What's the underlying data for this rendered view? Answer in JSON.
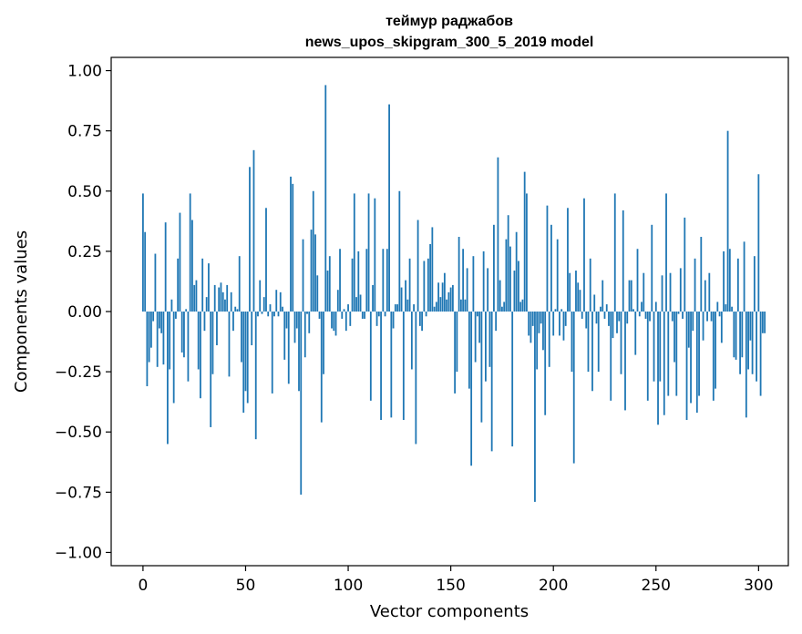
{
  "chart_data": {
    "type": "bar",
    "title_line1": "теймур раджабов",
    "title_line2": "news_upos_skipgram_300_5_2019 model",
    "xlabel": "Vector components",
    "ylabel": "Components values",
    "xlim": [
      -15.5,
      314.5
    ],
    "ylim": [
      -1.055,
      1.055
    ],
    "xticks": [
      0,
      50,
      100,
      150,
      200,
      250,
      300
    ],
    "xtick_labels": [
      "0",
      "50",
      "100",
      "150",
      "200",
      "250",
      "300"
    ],
    "yticks": [
      1.0,
      0.75,
      0.5,
      0.25,
      0.0,
      -0.25,
      -0.5,
      -0.75,
      -1.0
    ],
    "ytick_labels": [
      "1.00",
      "0.75",
      "0.50",
      "0.25",
      "0.00",
      "−0.25",
      "−0.50",
      "−0.75",
      "−1.00"
    ],
    "bar_color": "#1f77b4",
    "grid": false,
    "values": [
      0.49,
      0.33,
      -0.31,
      -0.21,
      -0.15,
      -0.04,
      0.24,
      -0.23,
      -0.07,
      -0.09,
      -0.22,
      0.37,
      -0.55,
      -0.24,
      0.05,
      -0.38,
      -0.03,
      0.22,
      0.41,
      -0.17,
      -0.19,
      0.01,
      -0.29,
      0.49,
      0.38,
      0.11,
      0.13,
      -0.24,
      -0.36,
      0.22,
      -0.08,
      0.06,
      0.2,
      -0.48,
      -0.26,
      0.11,
      -0.14,
      0.1,
      0.12,
      0.08,
      0.05,
      0.11,
      -0.27,
      0.08,
      -0.08,
      0.02,
      0.01,
      0.23,
      -0.21,
      -0.42,
      -0.33,
      -0.38,
      0.6,
      -0.14,
      0.67,
      -0.53,
      -0.02,
      0.13,
      -0.01,
      0.06,
      0.43,
      -0.02,
      0.03,
      -0.34,
      -0.02,
      0.09,
      -0.02,
      0.08,
      0.02,
      -0.2,
      -0.07,
      -0.3,
      0.56,
      0.53,
      -0.13,
      -0.07,
      -0.33,
      -0.76,
      0.3,
      -0.19,
      -0.01,
      -0.09,
      0.34,
      0.5,
      0.32,
      0.15,
      -0.03,
      -0.46,
      -0.26,
      0.94,
      0.17,
      0.23,
      -0.07,
      -0.08,
      -0.1,
      0.09,
      0.26,
      -0.03,
      0.01,
      -0.08,
      0.03,
      -0.06,
      0.22,
      0.49,
      0.06,
      0.25,
      0.07,
      -0.03,
      -0.03,
      0.26,
      0.49,
      -0.37,
      0.11,
      0.47,
      -0.06,
      -0.02,
      -0.45,
      0.26,
      -0.02,
      0.26,
      0.86,
      -0.44,
      -0.07,
      0.03,
      0.03,
      0.5,
      0.1,
      -0.45,
      0.13,
      0.05,
      0.22,
      -0.24,
      0.03,
      -0.55,
      0.38,
      -0.06,
      -0.08,
      0.21,
      -0.02,
      0.22,
      0.28,
      0.35,
      0.02,
      0.04,
      0.12,
      0.06,
      0.12,
      0.16,
      0.05,
      0.08,
      0.1,
      0.11,
      -0.34,
      -0.25,
      0.31,
      0.05,
      0.26,
      0.05,
      0.18,
      -0.32,
      -0.64,
      0.23,
      -0.21,
      -0.02,
      -0.13,
      -0.46,
      0.25,
      -0.29,
      0.18,
      -0.23,
      -0.58,
      0.36,
      -0.08,
      0.64,
      0.13,
      0.02,
      0.04,
      0.3,
      0.4,
      0.27,
      -0.56,
      0.17,
      0.33,
      0.21,
      0.04,
      0.05,
      0.58,
      0.49,
      -0.1,
      -0.13,
      -0.06,
      -0.79,
      -0.24,
      -0.09,
      -0.05,
      -0.16,
      -0.43,
      0.44,
      -0.23,
      0.36,
      -0.1,
      0.01,
      0.3,
      -0.1,
      0.01,
      -0.12,
      -0.06,
      0.43,
      0.16,
      -0.25,
      -0.63,
      0.17,
      0.12,
      0.09,
      -0.03,
      0.47,
      -0.07,
      -0.25,
      0.22,
      -0.33,
      0.07,
      -0.05,
      -0.25,
      0.02,
      0.13,
      -0.03,
      0.03,
      -0.06,
      -0.37,
      -0.11,
      0.49,
      -0.09,
      -0.04,
      -0.26,
      0.42,
      -0.41,
      -0.05,
      0.13,
      0.13,
      0.01,
      -0.18,
      0.26,
      -0.02,
      0.04,
      0.16,
      -0.03,
      -0.37,
      -0.04,
      0.36,
      -0.29,
      0.04,
      -0.47,
      -0.29,
      0.15,
      -0.43,
      0.49,
      -0.35,
      0.16,
      -0.04,
      -0.21,
      -0.35,
      -0.01,
      0.18,
      -0.03,
      0.39,
      -0.45,
      -0.15,
      -0.38,
      -0.08,
      0.22,
      -0.42,
      -0.35,
      0.31,
      -0.12,
      0.13,
      -0.04,
      0.16,
      -0.04,
      -0.37,
      -0.32,
      0.04,
      -0.02,
      -0.13,
      0.25,
      0.03,
      0.75,
      0.26,
      0.02,
      -0.19,
      -0.2,
      0.22,
      -0.26,
      -0.19,
      0.29,
      -0.44,
      -0.24,
      -0.12,
      -0.26,
      0.23,
      -0.29,
      0.57,
      -0.35,
      -0.09,
      -0.09
    ]
  }
}
